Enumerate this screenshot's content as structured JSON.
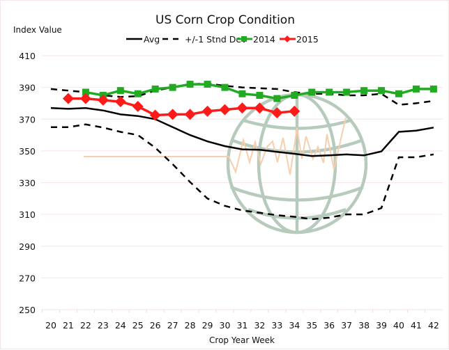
{
  "chart_data": {
    "type": "line",
    "title": "US Corn Crop Condition",
    "xlabel": "Crop Year Week",
    "ylabel": "Index Value",
    "x": [
      20,
      21,
      22,
      23,
      24,
      25,
      26,
      27,
      28,
      29,
      30,
      31,
      32,
      33,
      34,
      35,
      36,
      37,
      38,
      39,
      40,
      41,
      42
    ],
    "x_tick_labels": [
      "20",
      "21",
      "22",
      "23",
      "24",
      "25",
      "26",
      "27",
      "28",
      "29",
      "30",
      "31",
      "32",
      "33",
      "34",
      "35",
      "36",
      "37",
      "38",
      "39",
      "40",
      "41",
      "42"
    ],
    "ylim": [
      250,
      410
    ],
    "y_ticks": [
      410,
      390,
      370,
      350,
      330,
      310,
      290,
      270,
      250
    ],
    "y_tick_labels": [
      "410",
      "390",
      "370",
      "350",
      "330",
      "310",
      "290",
      "270",
      "250"
    ],
    "grid": "horizontal",
    "legend_position": "top-center",
    "series": [
      {
        "name": "Avg",
        "style": "solid",
        "color": "#000000",
        "marker": "none",
        "values": [
          377,
          376.5,
          377,
          375.5,
          373,
          372,
          370,
          365,
          360,
          356,
          353,
          351,
          350.7,
          349.4,
          348.2,
          346.8,
          347.2,
          347.8,
          347.2,
          349.7,
          362,
          362.8,
          364.7
        ]
      },
      {
        "name": "+/-1 Stnd Dev",
        "style": "dashed",
        "color": "#000000",
        "marker": "none",
        "upper": [
          389,
          388,
          387,
          385,
          384,
          384.5,
          388,
          390,
          392,
          392.5,
          391,
          390,
          389.5,
          389,
          387,
          386,
          386,
          385,
          385,
          386,
          379,
          380,
          381.5
        ],
        "lower": [
          365,
          365,
          366.7,
          364.7,
          362,
          360,
          352,
          341.6,
          330.4,
          320,
          315.4,
          312.5,
          311,
          309.5,
          308.5,
          307,
          308,
          310,
          310,
          314,
          346,
          346,
          347.8
        ]
      },
      {
        "name": "2014",
        "style": "solid",
        "color": "#22aa22",
        "marker": "square",
        "values": [
          null,
          null,
          387,
          385,
          388,
          386,
          389,
          390,
          392,
          392,
          390,
          386,
          385,
          383,
          385,
          387,
          387,
          387,
          388,
          388,
          386,
          389,
          389
        ]
      },
      {
        "name": "2015",
        "style": "solid",
        "color": "#ff1a1a",
        "marker": "diamond",
        "values": [
          null,
          383,
          383,
          382,
          381,
          378,
          372.5,
          373,
          373,
          375,
          376,
          377,
          377,
          374,
          375,
          null,
          null,
          null,
          null,
          null,
          null,
          null,
          null
        ]
      }
    ]
  },
  "watermark": {
    "icon": "globe-icon",
    "globe_color": "#b7cbbd",
    "signal_color": "#f5cfae"
  }
}
